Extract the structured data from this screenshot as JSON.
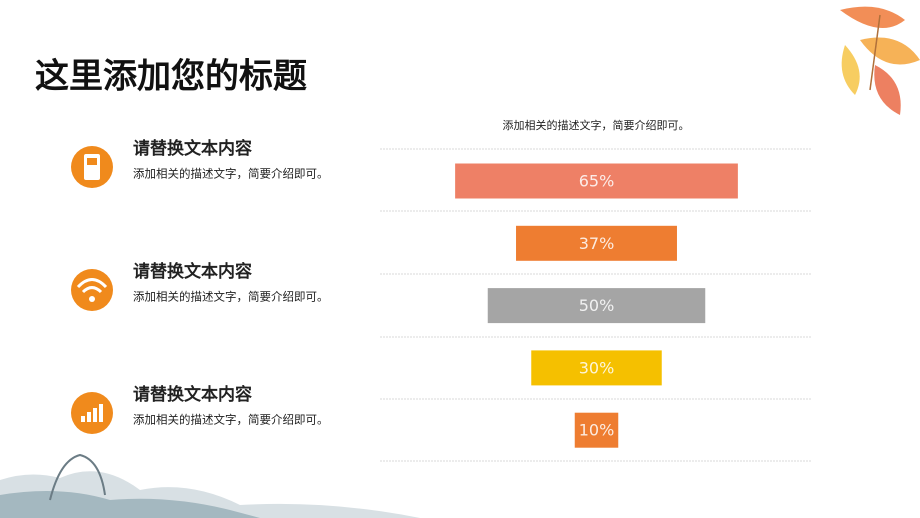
{
  "title": "这里添加您的标题",
  "items": [
    {
      "heading": "请替换文本内容",
      "text": "添加相关的描述文字，简要介绍即可。"
    },
    {
      "heading": "请替换文本内容",
      "text": "添加相关的描述文字，简要介绍即可。"
    },
    {
      "heading": "请替换文本内容",
      "text": "添加相关的描述文字，简要介绍即可。"
    }
  ],
  "chart_data": {
    "type": "bar",
    "orientation": "horizontal-centered",
    "title": "添加相关的描述文字，简要介绍即可。",
    "categories": [
      null,
      null,
      null,
      null,
      null
    ],
    "values": [
      65,
      37,
      50,
      30,
      10
    ],
    "value_labels": [
      "65%",
      "37%",
      "50%",
      "30%",
      "10%"
    ],
    "colors": [
      "#ee8066",
      "#ee7d31",
      "#a5a5a5",
      "#f5c000",
      "#ee7d31"
    ],
    "xlim": [
      0,
      100
    ]
  }
}
